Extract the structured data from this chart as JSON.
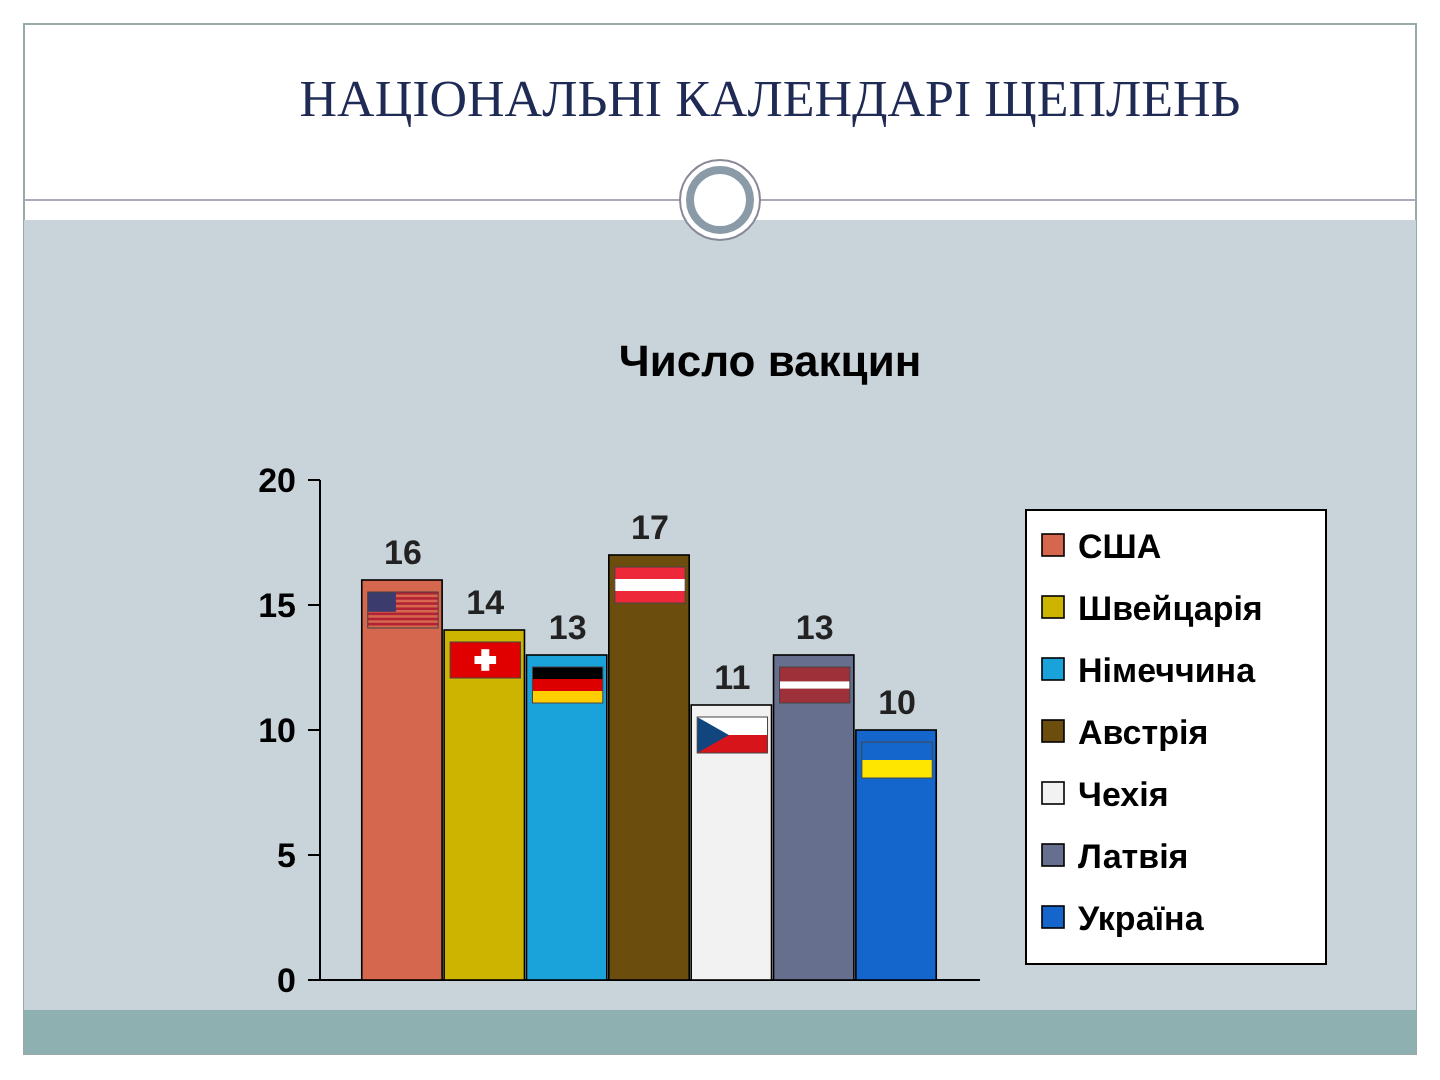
{
  "chart_data": {
    "type": "bar",
    "title": "НАЦІОНАЛЬНІ КАЛЕНДАРІ ЩЕПЛЕНЬ",
    "subtitle": "Число вакцин",
    "categories": [
      null
    ],
    "series": [
      {
        "name": "США",
        "color": "#d4674d",
        "values": [
          16
        ]
      },
      {
        "name": "Швейцарія",
        "color": "#cdb400",
        "values": [
          14
        ]
      },
      {
        "name": "Німеччина",
        "color": "#1aa3da",
        "values": [
          13
        ]
      },
      {
        "name": "Австрія",
        "color": "#6b4e0e",
        "values": [
          17
        ]
      },
      {
        "name": "Чехія",
        "color": "#f2f2f2",
        "values": [
          11
        ]
      },
      {
        "name": "Латвія",
        "color": "#66708e",
        "values": [
          13
        ]
      },
      {
        "name": "Україна",
        "color": "#1466cc",
        "values": [
          10
        ]
      }
    ],
    "ylim": [
      0,
      20
    ],
    "yticks": [
      0,
      5,
      10,
      15,
      20
    ],
    "data_labels": true,
    "legend": "right"
  }
}
